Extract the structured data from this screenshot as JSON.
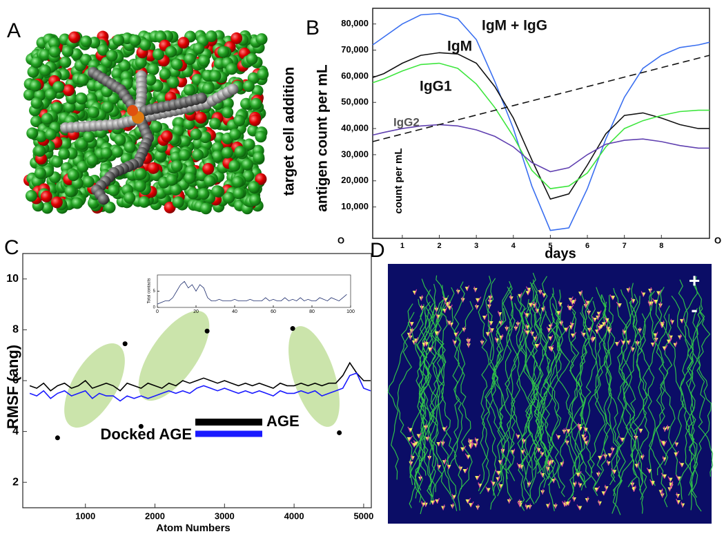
{
  "panels": {
    "a": "A",
    "b": "B",
    "c": "C",
    "d": "D",
    "plus": "+",
    "minus": "-"
  },
  "chart_data": [
    {
      "type": "line",
      "x_label": "days",
      "y_label": "antigen count per mL",
      "y_label_secondary": "target cell addition",
      "inner_label": "count per mL",
      "annotations": [
        "O",
        "O"
      ],
      "x": [
        0.2,
        0.5,
        1,
        1.5,
        2,
        2.5,
        3,
        3.5,
        4,
        4.5,
        5,
        5.5,
        6,
        6.5,
        7,
        7.5,
        8,
        8.5,
        9,
        9.3
      ],
      "xlim": [
        0.2,
        9.3
      ],
      "xticks": [
        1,
        2,
        3,
        4,
        5,
        6,
        7,
        8
      ],
      "ylim": [
        -2000,
        86000
      ],
      "yticks": [
        {
          "value": 10000,
          "label": "10,000"
        },
        {
          "value": 20000,
          "label": "20,000"
        },
        {
          "value": 30000,
          "label": "30,000"
        },
        {
          "value": 40000,
          "label": "40,000"
        },
        {
          "value": 50000,
          "label": "50,000"
        },
        {
          "value": 60000,
          "label": "60,000"
        },
        {
          "value": 70000,
          "label": "70,000"
        },
        {
          "value": 80000,
          "label": "80,000"
        }
      ],
      "series": [
        {
          "name": "IgM + IgG",
          "color": "#3a6ff0",
          "values": [
            72000,
            75000,
            80000,
            83500,
            84000,
            82000,
            74000,
            58000,
            40000,
            18000,
            1000,
            2000,
            17000,
            36000,
            52000,
            63000,
            68000,
            71000,
            72000,
            73000
          ]
        },
        {
          "name": "IgM",
          "color": "#111111",
          "values": [
            59500,
            61000,
            65000,
            68000,
            69000,
            68500,
            65000,
            56000,
            44000,
            28000,
            13000,
            15000,
            26000,
            38000,
            45000,
            46000,
            44000,
            41500,
            40000,
            40000
          ]
        },
        {
          "name": "IgG1",
          "color": "#3ee63e",
          "values": [
            57500,
            59000,
            62000,
            64500,
            65000,
            63000,
            57000,
            48000,
            37000,
            24000,
            17000,
            18000,
            23000,
            33000,
            40000,
            43000,
            45000,
            46500,
            47000,
            47000
          ]
        },
        {
          "name": "IgG2",
          "color": "#6040b0",
          "values": [
            37500,
            38500,
            40000,
            41000,
            41500,
            41000,
            39500,
            37000,
            33000,
            27000,
            23500,
            25000,
            30000,
            34000,
            35500,
            36000,
            35000,
            33500,
            32500,
            32500
          ]
        },
        {
          "color": "#111111",
          "dashed": true,
          "x": [
            0.2,
            9.3
          ],
          "values": [
            35000,
            68000
          ]
        }
      ]
    },
    {
      "type": "line",
      "x_label": "Atom Numbers",
      "y_label": "RMSF (ang)",
      "x": [
        200,
        300,
        400,
        500,
        600,
        700,
        800,
        900,
        1000,
        1100,
        1200,
        1300,
        1400,
        1500,
        1600,
        1700,
        1800,
        1900,
        2000,
        2100,
        2200,
        2300,
        2400,
        2500,
        2600,
        2700,
        2800,
        2900,
        3000,
        3100,
        3200,
        3300,
        3400,
        3500,
        3600,
        3700,
        3800,
        3900,
        4000,
        4100,
        4200,
        4300,
        4400,
        4500,
        4600,
        4700,
        4800,
        4900,
        5000,
        5100
      ],
      "xlim": [
        100,
        5110
      ],
      "xticks": [
        1000,
        2000,
        3000,
        4000,
        5000
      ],
      "ylim": [
        1,
        11
      ],
      "yticks": [
        2,
        4,
        6,
        8,
        10
      ],
      "series": [
        {
          "name": "AGE",
          "color": "#000000",
          "values": [
            5.8,
            5.7,
            5.9,
            5.6,
            5.8,
            5.9,
            5.7,
            5.8,
            6.0,
            5.7,
            5.8,
            5.9,
            5.8,
            5.6,
            5.9,
            5.8,
            5.7,
            5.9,
            5.8,
            5.7,
            5.9,
            5.8,
            6.0,
            5.9,
            6.0,
            6.1,
            6.0,
            5.9,
            6.0,
            5.9,
            5.8,
            5.9,
            5.8,
            5.9,
            5.8,
            5.7,
            5.9,
            5.8,
            5.8,
            5.9,
            5.8,
            5.9,
            5.8,
            5.9,
            5.9,
            6.2,
            6.7,
            6.3,
            6.0,
            6.0
          ]
        },
        {
          "name": "Docked AGE",
          "color": "#1a1aff",
          "values": [
            5.5,
            5.4,
            5.6,
            5.3,
            5.5,
            5.6,
            5.4,
            5.5,
            5.6,
            5.3,
            5.5,
            5.4,
            5.4,
            5.2,
            5.4,
            5.3,
            5.4,
            5.3,
            5.4,
            5.5,
            5.6,
            5.5,
            5.6,
            5.5,
            5.7,
            5.8,
            5.7,
            5.6,
            5.7,
            5.6,
            5.5,
            5.6,
            5.5,
            5.6,
            5.5,
            5.4,
            5.6,
            5.5,
            5.5,
            5.6,
            5.5,
            5.6,
            5.4,
            5.5,
            5.6,
            5.7,
            6.2,
            6.3,
            5.7,
            5.6
          ]
        }
      ],
      "points": {
        "color": "#000000",
        "x": [
          600,
          1570,
          1800,
          2750,
          3980,
          4650
        ],
        "values": [
          3.75,
          7.45,
          4.2,
          7.95,
          8.05,
          3.95
        ]
      }
    },
    {
      "type": "line",
      "y_label": "Total contacts",
      "x": [
        0,
        2,
        4,
        6,
        8,
        10,
        12,
        14,
        16,
        18,
        20,
        22,
        24,
        26,
        28,
        30,
        32,
        34,
        36,
        38,
        40,
        42,
        44,
        46,
        48,
        50,
        52,
        54,
        56,
        58,
        60,
        62,
        64,
        66,
        68,
        70,
        72,
        74,
        76,
        78,
        80,
        82,
        84,
        86,
        88,
        90,
        92,
        94,
        96,
        98
      ],
      "xlim": [
        0,
        100
      ],
      "xticks": [
        0,
        20,
        40,
        60,
        80,
        100
      ],
      "ylim": [
        0,
        10
      ],
      "yticks": [
        0,
        5
      ],
      "series": [
        {
          "color": "#1b2a6b",
          "values": [
            1,
            1.5,
            2,
            2,
            3,
            5,
            7,
            8,
            6,
            7,
            5,
            7,
            6,
            3,
            2,
            2,
            2.5,
            2,
            2,
            2,
            2.5,
            2,
            2,
            2,
            2.5,
            2,
            2,
            2,
            3,
            2,
            2.5,
            2,
            2,
            3,
            2,
            2.5,
            2,
            3,
            2,
            2.5,
            2,
            2,
            3,
            2.5,
            2,
            3,
            2.5,
            2,
            3,
            4
          ]
        }
      ]
    }
  ]
}
